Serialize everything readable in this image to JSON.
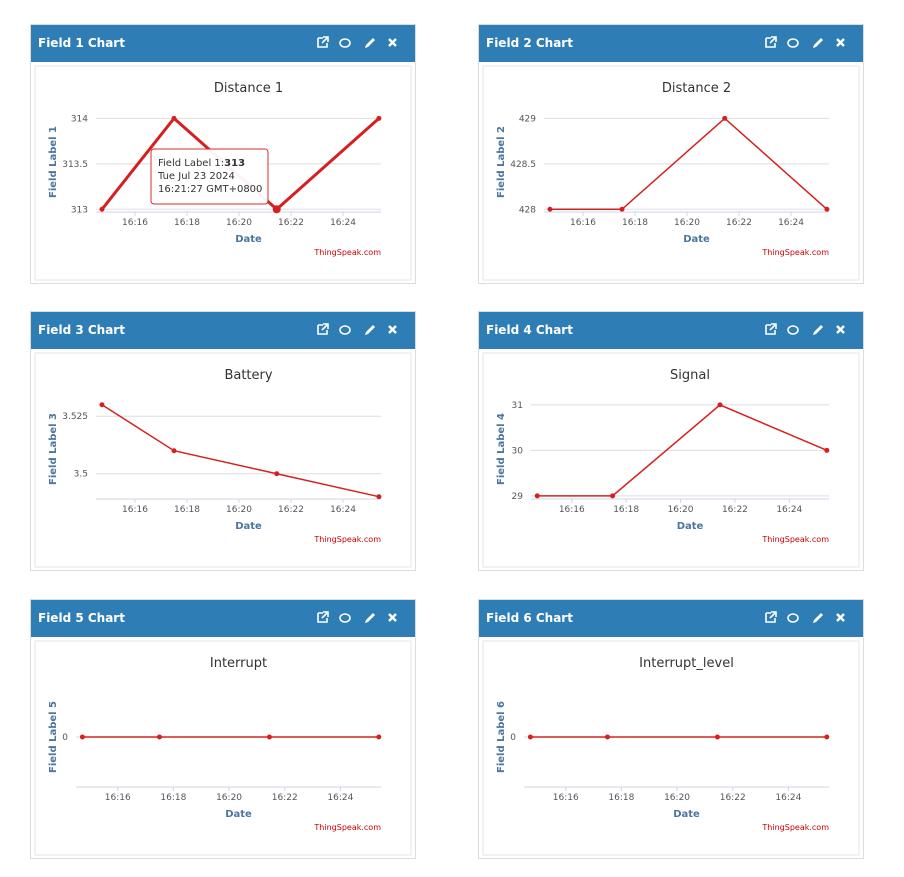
{
  "chart_data": [
    {
      "type": "line",
      "header": "Field 1 Chart",
      "title": "Distance 1",
      "ylabel": "Field Label 1",
      "xlabel": "Date",
      "credit": "ThingSpeak.com",
      "x": [
        974.73,
        977.5,
        981.45,
        985.38
      ],
      "xlim": [
        974.5,
        985.46
      ],
      "xticks": [
        {
          "value": 976,
          "label": "16:16"
        },
        {
          "value": 978,
          "label": "16:18"
        },
        {
          "value": 980,
          "label": "16:20"
        },
        {
          "value": 982,
          "label": "16:22"
        },
        {
          "value": 984,
          "label": "16:24"
        }
      ],
      "ylim": [
        312.97,
        314.07
      ],
      "yticks": [
        313,
        313.5,
        314
      ],
      "grid": true,
      "series": [
        {
          "name": "Field Label 1",
          "color": "#d62020",
          "values": [
            313,
            314,
            313,
            314
          ]
        }
      ],
      "tooltip": {
        "label": "Field Label 1:",
        "value": 313,
        "date": "Tue Jul 23 2024",
        "time": "16:21:27 GMT+0800"
      }
    },
    {
      "type": "line",
      "header": "Field 2 Chart",
      "title": "Distance 2",
      "ylabel": "Field Label 2",
      "xlabel": "Date",
      "credit": "ThingSpeak.com",
      "x": [
        974.73,
        977.5,
        981.45,
        985.38
      ],
      "xlim": [
        974.5,
        985.46
      ],
      "xticks": [
        {
          "value": 976,
          "label": "16:16"
        },
        {
          "value": 978,
          "label": "16:18"
        },
        {
          "value": 980,
          "label": "16:20"
        },
        {
          "value": 982,
          "label": "16:22"
        },
        {
          "value": 984,
          "label": "16:24"
        }
      ],
      "ylim": [
        427.97,
        429.07
      ],
      "yticks": [
        428,
        428.5,
        429
      ],
      "grid": true,
      "series": [
        {
          "name": "Field Label 2",
          "color": "#d62020",
          "values": [
            428,
            428,
            429,
            428
          ]
        }
      ]
    },
    {
      "type": "line",
      "header": "Field 3 Chart",
      "title": "Battery",
      "ylabel": "Field Label 3",
      "xlabel": "Date",
      "credit": "ThingSpeak.com",
      "x": [
        974.73,
        977.5,
        981.45,
        985.38
      ],
      "xlim": [
        974.5,
        985.46
      ],
      "xticks": [
        {
          "value": 976,
          "label": "16:16"
        },
        {
          "value": 978,
          "label": "16:18"
        },
        {
          "value": 980,
          "label": "16:20"
        },
        {
          "value": 982,
          "label": "16:22"
        },
        {
          "value": 984,
          "label": "16:24"
        }
      ],
      "ylim": [
        3.489,
        3.5325
      ],
      "yticks": [
        3.5,
        3.525
      ],
      "grid": true,
      "series": [
        {
          "name": "Field Label 3",
          "color": "#d62020",
          "values": [
            3.53,
            3.51,
            3.5,
            3.49
          ]
        }
      ]
    },
    {
      "type": "line",
      "header": "Field 4 Chart",
      "title": "Signal",
      "ylabel": "Field Label 4",
      "xlabel": "Date",
      "credit": "ThingSpeak.com",
      "x": [
        974.73,
        977.5,
        981.45,
        985.38
      ],
      "xlim": [
        974.5,
        985.46
      ],
      "xticks": [
        {
          "value": 976,
          "label": "16:16"
        },
        {
          "value": 978,
          "label": "16:18"
        },
        {
          "value": 980,
          "label": "16:20"
        },
        {
          "value": 982,
          "label": "16:22"
        },
        {
          "value": 984,
          "label": "16:24"
        }
      ],
      "ylim": [
        28.93,
        31.13
      ],
      "yticks": [
        29,
        30,
        31
      ],
      "grid": true,
      "series": [
        {
          "name": "Field Label 4",
          "color": "#d62020",
          "values": [
            29,
            29,
            31,
            30
          ]
        }
      ]
    },
    {
      "type": "line",
      "header": "Field 5 Chart",
      "title": "Interrupt",
      "ylabel": "Field Label 5",
      "xlabel": "Date",
      "credit": "ThingSpeak.com",
      "x": [
        974.73,
        977.5,
        981.45,
        985.38
      ],
      "xlim": [
        974.5,
        985.46
      ],
      "xticks": [
        {
          "value": 976,
          "label": "16:16"
        },
        {
          "value": 978,
          "label": "16:18"
        },
        {
          "value": 980,
          "label": "16:20"
        },
        {
          "value": 982,
          "label": "16:22"
        },
        {
          "value": 984,
          "label": "16:24"
        }
      ],
      "ylim": [
        -1,
        1
      ],
      "yticks": [
        0
      ],
      "grid": true,
      "series": [
        {
          "name": "Field Label 5",
          "color": "#d62020",
          "values": [
            0,
            0,
            0,
            0
          ]
        }
      ]
    },
    {
      "type": "line",
      "header": "Field 6 Chart",
      "title": "Interrupt_level",
      "ylabel": "Field Label 6",
      "xlabel": "Date",
      "credit": "ThingSpeak.com",
      "x": [
        974.73,
        977.5,
        981.45,
        985.38
      ],
      "xlim": [
        974.5,
        985.46
      ],
      "xticks": [
        {
          "value": 976,
          "label": "16:16"
        },
        {
          "value": 978,
          "label": "16:18"
        },
        {
          "value": 980,
          "label": "16:20"
        },
        {
          "value": 982,
          "label": "16:22"
        },
        {
          "value": 984,
          "label": "16:24"
        }
      ],
      "ylim": [
        -1,
        1
      ],
      "yticks": [
        0
      ],
      "grid": true,
      "series": [
        {
          "name": "Field Label 6",
          "color": "#d62020",
          "values": [
            0,
            0,
            0,
            0
          ]
        }
      ]
    }
  ]
}
